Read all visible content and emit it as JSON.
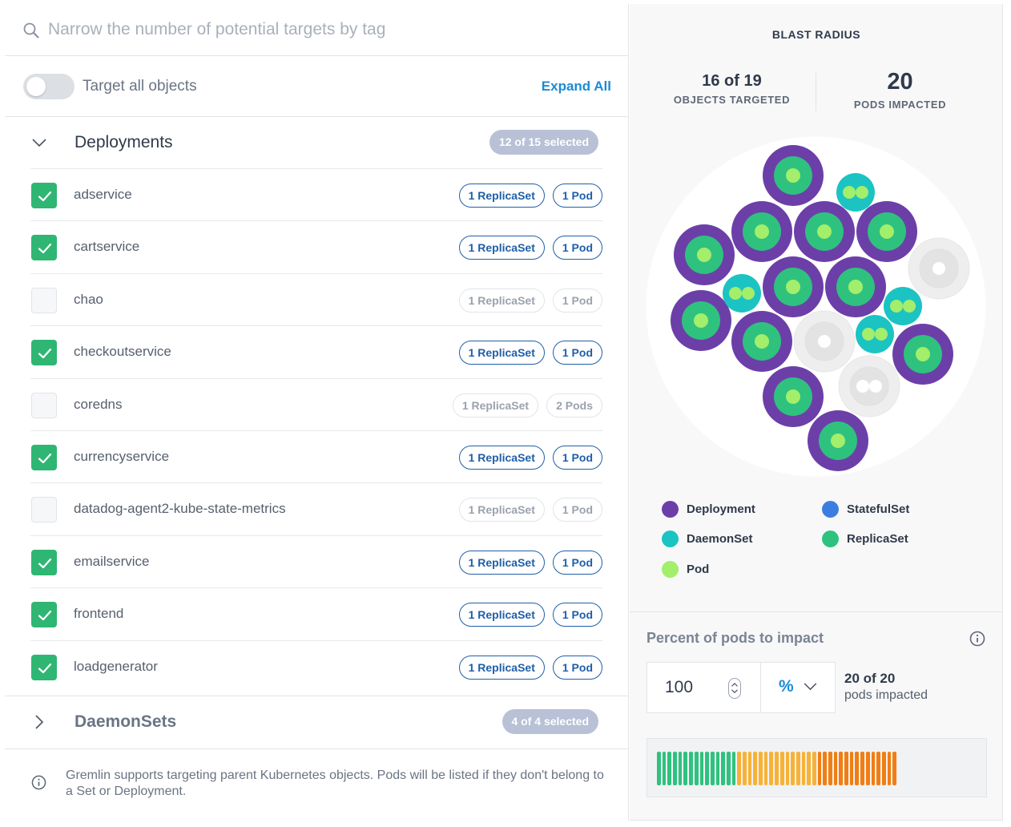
{
  "search": {
    "placeholder": "Narrow the number of potential targets by tag"
  },
  "targets": {
    "toggle_label": "Target all objects",
    "toggle_on": false,
    "expand_all": "Expand All"
  },
  "groups": {
    "deployments": {
      "title": "Deployments",
      "badge": "12 of 15 selected",
      "expanded": true,
      "rows": [
        {
          "name": "adservice",
          "checked": true,
          "pills": [
            "1 ReplicaSet",
            "1 Pod"
          ]
        },
        {
          "name": "cartservice",
          "checked": true,
          "pills": [
            "1 ReplicaSet",
            "1 Pod"
          ]
        },
        {
          "name": "chao",
          "checked": false,
          "pills": [
            "1 ReplicaSet",
            "1 Pod"
          ]
        },
        {
          "name": "checkoutservice",
          "checked": true,
          "pills": [
            "1 ReplicaSet",
            "1 Pod"
          ]
        },
        {
          "name": "coredns",
          "checked": false,
          "pills": [
            "1 ReplicaSet",
            "2 Pods"
          ]
        },
        {
          "name": "currencyservice",
          "checked": true,
          "pills": [
            "1 ReplicaSet",
            "1 Pod"
          ]
        },
        {
          "name": "datadog-agent2-kube-state-metrics",
          "checked": false,
          "pills": [
            "1 ReplicaSet",
            "1 Pod"
          ]
        },
        {
          "name": "emailservice",
          "checked": true,
          "pills": [
            "1 ReplicaSet",
            "1 Pod"
          ]
        },
        {
          "name": "frontend",
          "checked": true,
          "pills": [
            "1 ReplicaSet",
            "1 Pod"
          ]
        },
        {
          "name": "loadgenerator",
          "checked": true,
          "pills": [
            "1 ReplicaSet",
            "1 Pod"
          ]
        }
      ]
    },
    "daemonsets": {
      "title": "DaemonSets",
      "badge": "4 of 4 selected",
      "expanded": false
    }
  },
  "footer_note": "Gremlin supports targeting parent Kubernetes objects. Pods will be listed if they don't belong to a Set or Deployment.",
  "blast_radius": {
    "title": "BLAST RADIUS",
    "objects_value": "16 of 19",
    "objects_label": "OBJECTS TARGETED",
    "pods_value": "20",
    "pods_label": "PODS IMPACTED"
  },
  "legend": [
    {
      "label": "Deployment",
      "color": "#6c3fa8"
    },
    {
      "label": "StatefulSet",
      "color": "#3c7ee0"
    },
    {
      "label": "DaemonSet",
      "color": "#1cc3c3"
    },
    {
      "label": "ReplicaSet",
      "color": "#2ec27e"
    },
    {
      "label": "Pod",
      "color": "#a3ee6a"
    }
  ],
  "impact": {
    "title": "Percent of pods to impact",
    "value": "100",
    "unit": "%",
    "impacted_count": "20 of 20",
    "impacted_label": "pods impacted",
    "bar_colors": {
      "green": "#2ec27e",
      "yellow": "#f7b236",
      "orange": "#f07e12"
    },
    "bar_segments": [
      15,
      15,
      15
    ]
  }
}
